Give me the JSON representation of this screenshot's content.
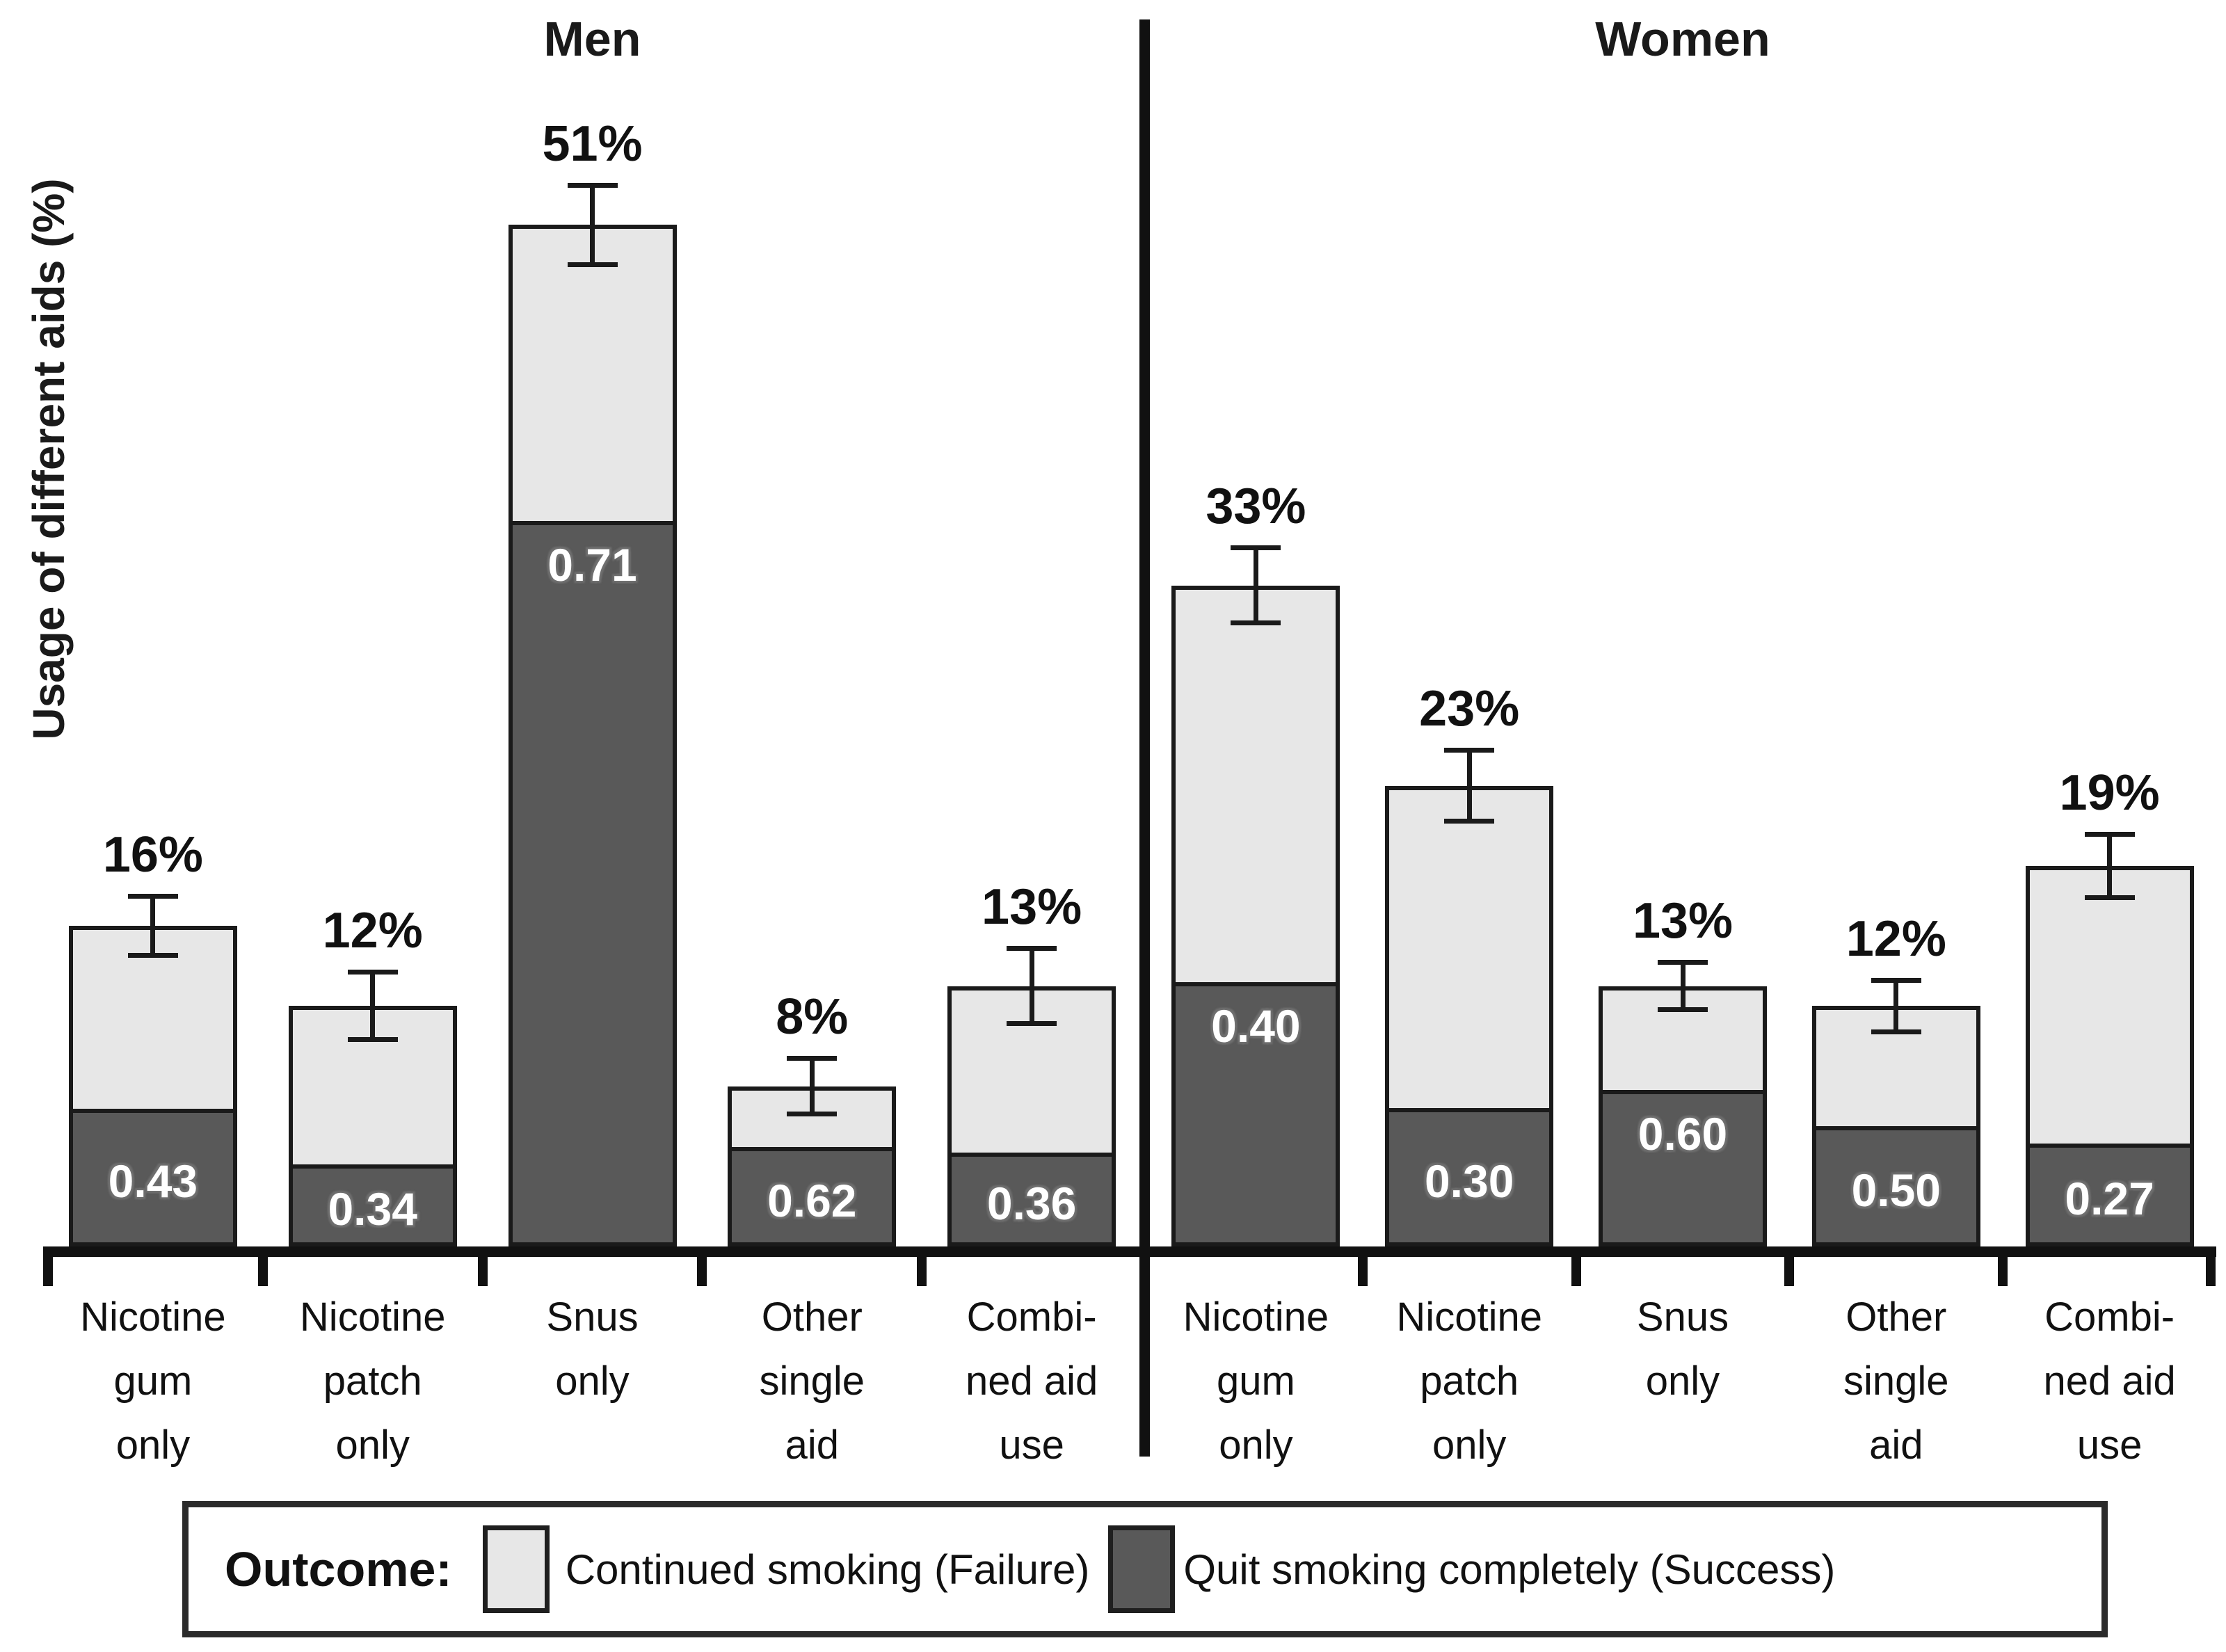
{
  "figure": {
    "ylabel": "Usage of different aids (%)",
    "panel_titles": {
      "left": "Men",
      "right": "Women"
    },
    "legend": {
      "title": "Outcome:",
      "items": [
        {
          "key": "failure",
          "label": "Continued smoking (Failure)",
          "color": "#e7e7e7"
        },
        {
          "key": "success",
          "label": "Quit smoking completely (Success)",
          "color": "#595959"
        }
      ]
    }
  },
  "chart_data": {
    "type": "bar",
    "subtype": "stacked",
    "title": "",
    "ylabel": "Usage of different aids (%)",
    "xlabel": "",
    "ylim": [
      0,
      55
    ],
    "grid": false,
    "legend_position": "bottom",
    "categories": [
      "Nicotine gum only",
      "Nicotine patch only",
      "Snus only",
      "Other single aid",
      "Combined aid use"
    ],
    "category_label_lines": [
      [
        "Nicotine",
        "gum",
        "only"
      ],
      [
        "Nicotine",
        "patch",
        "only"
      ],
      [
        "Snus",
        "only"
      ],
      [
        "Other",
        "single",
        "aid"
      ],
      [
        "Combi-",
        "ned aid",
        "use"
      ]
    ],
    "stack_segments": [
      "Quit smoking completely (Success)",
      "Continued smoking (Failure)"
    ],
    "panels": [
      {
        "title": "Men",
        "usage_total_pct": [
          16,
          12,
          51,
          8,
          13
        ],
        "usage_total_labels": [
          "16%",
          "12%",
          "51%",
          "8%",
          "13%"
        ],
        "success_proportion": [
          0.43,
          0.34,
          0.71,
          0.62,
          0.36
        ],
        "success_labels": [
          "0.43",
          "0.34",
          "0.71",
          "0.62",
          "0.36"
        ],
        "error_bars_pct_approx": [
          1.5,
          1.7,
          2.0,
          1.4,
          1.9
        ]
      },
      {
        "title": "Women",
        "usage_total_pct": [
          33,
          23,
          13,
          12,
          19
        ],
        "usage_total_labels": [
          "33%",
          "23%",
          "13%",
          "12%",
          "19%"
        ],
        "success_proportion": [
          0.4,
          0.3,
          0.6,
          0.5,
          0.27
        ],
        "success_labels": [
          "0.40",
          "0.30",
          "0.60",
          "0.50",
          "0.27"
        ],
        "error_bars_pct_approx": [
          1.9,
          1.8,
          1.2,
          1.3,
          1.6
        ]
      }
    ],
    "colors": {
      "failure": "#e7e7e7",
      "success": "#595959",
      "line": "#1a1a1a",
      "background": "#ffffff"
    }
  }
}
